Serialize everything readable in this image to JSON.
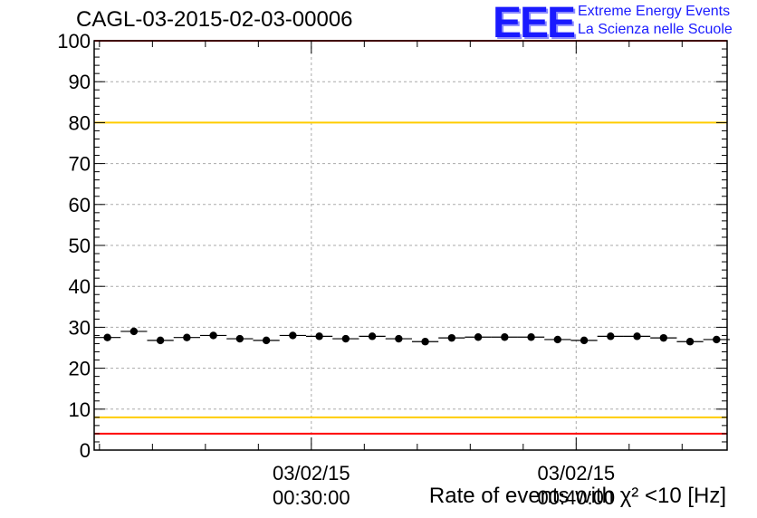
{
  "chart_data": {
    "type": "scatter",
    "title": "CAGL-03-2015-02-03-00006",
    "xlabel": "Rate of events with χ² <10 [Hz]",
    "ylabel": "",
    "ylim": [
      0,
      100
    ],
    "yticks": [
      0,
      10,
      20,
      30,
      40,
      50,
      60,
      70,
      80,
      90,
      100
    ],
    "xticks": [
      {
        "date": "03/02/15",
        "time": "00:30:00",
        "t": 30
      },
      {
        "date": "03/02/15",
        "time": "00:40:00",
        "t": 40
      }
    ],
    "xlim": [
      21.8,
      45.7
    ],
    "bin_width": 1,
    "grid": true,
    "reference_lines": [
      {
        "y": 100,
        "color": "#ff0000"
      },
      {
        "y": 80,
        "color": "#ffcc00"
      },
      {
        "y": 8,
        "color": "#ffcc00"
      },
      {
        "y": 4,
        "color": "#ff0000"
      }
    ],
    "series": [
      {
        "x": [
          22.3,
          23.3,
          24.3,
          25.3,
          26.3,
          27.3,
          28.3,
          29.3,
          30.3,
          31.3,
          32.3,
          33.3,
          34.3,
          35.3,
          36.3,
          37.3,
          38.3,
          39.3,
          40.3,
          41.3,
          42.3,
          43.3,
          44.3,
          45.3
        ],
        "values": [
          27.5,
          29.0,
          26.8,
          27.5,
          28.0,
          27.2,
          26.8,
          28.0,
          27.8,
          27.2,
          27.8,
          27.2,
          26.5,
          27.4,
          27.6,
          27.6,
          27.6,
          27.0,
          26.8,
          27.8,
          27.8,
          27.4,
          26.5,
          27.0
        ]
      }
    ]
  },
  "logo": {
    "mark": "EEE",
    "line1": "Extreme Energy Events",
    "line2": "La Scienza nelle Scuole"
  },
  "colors": {
    "marker": "#000000",
    "grid": "#aaaaaa",
    "red": "#ff0000",
    "yellow": "#ffcc00",
    "logo": "#1a1aff"
  }
}
